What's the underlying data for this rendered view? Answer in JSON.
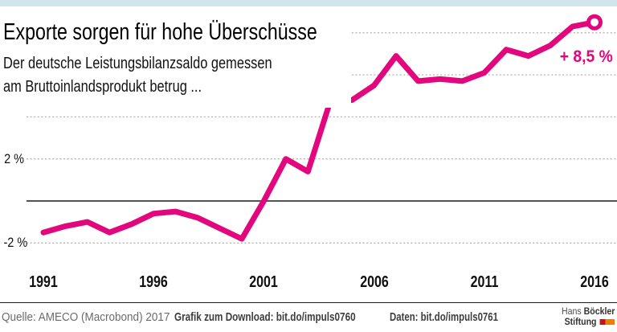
{
  "header": {
    "title": "Exporte sorgen für hohe Überschüsse",
    "subtitle_line1": "Der deutsche Leistungsbilanzsaldo gemessen",
    "subtitle_line2": "am Bruttoinlandsprodukt betrug ..."
  },
  "chart_data": {
    "type": "line",
    "title": "Exporte sorgen für hohe Überschüsse",
    "series_name": "Deutscher Leistungsbilanzsaldo gemessen am Bruttoinlandsprodukt",
    "x": [
      1991,
      1992,
      1993,
      1994,
      1995,
      1996,
      1997,
      1998,
      1999,
      2000,
      2001,
      2002,
      2003,
      2004,
      2005,
      2006,
      2007,
      2008,
      2009,
      2010,
      2011,
      2012,
      2013,
      2014,
      2015,
      2016
    ],
    "values": [
      -1.5,
      -1.2,
      -1.0,
      -1.5,
      -1.1,
      -0.6,
      -0.5,
      -0.8,
      -1.3,
      -1.8,
      0.0,
      2.0,
      1.4,
      4.7,
      4.8,
      5.5,
      6.9,
      5.7,
      5.8,
      5.7,
      6.1,
      7.2,
      6.9,
      7.4,
      8.3,
      8.5
    ],
    "unit": "%",
    "ylim": [
      -3,
      9.5
    ],
    "gridline_values": [
      8,
      6,
      4,
      2,
      -2
    ],
    "zero_line_value": 0,
    "y_tick_labels": [
      "2 %",
      "-2 %"
    ],
    "y_tick_values": [
      2,
      -2
    ],
    "x_tick_labels": [
      "1991",
      "1996",
      "2001",
      "2006",
      "2011",
      "2016"
    ],
    "annotation": "+ 8,5 %",
    "annotation_value": 8.5,
    "grid": "horizontal-dashed",
    "legend": "none",
    "end_marker": "open-circle"
  },
  "colors": {
    "line": "#e2077c",
    "accent_bar": "#d2e4ec",
    "gridline": "#b5b4ac",
    "axis": "#1a1a1a",
    "logo_red": "#cc1018",
    "logo_orange": "#ee7d00"
  },
  "footer": {
    "source": "Quelle: AMECO (Macrobond) 2017",
    "download": "Grafik zum Download: bit.do/impuls0760",
    "daten": "Daten: bit.do/impuls0761",
    "logo": {
      "name_regular": "Hans",
      "name_bold": "Böckler",
      "line2": "Stiftung"
    }
  }
}
